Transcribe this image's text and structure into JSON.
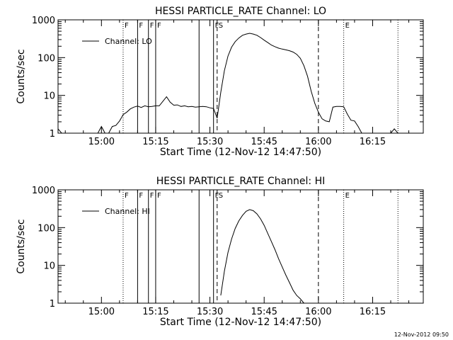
{
  "footer": "12-Nov-2012 09:50",
  "chart_data": [
    {
      "type": "line",
      "title": "HESSI PARTICLE_RATE Channel: LO",
      "xlabel": "Start Time (12-Nov-12 14:47:50)",
      "ylabel": "Counts/sec",
      "yscale": "log",
      "ylim": [
        1,
        1000
      ],
      "xlim": [
        "14:48",
        "16:29"
      ],
      "x_ticks": [
        "15:00",
        "15:15",
        "15:30",
        "15:45",
        "16:00",
        "16:15"
      ],
      "y_ticks": [
        "1",
        "10",
        "100",
        "1000"
      ],
      "grid": false,
      "legend": {
        "label": "Channel: LO",
        "position": "top-left"
      },
      "event_flags": [
        {
          "time": "15:06",
          "label": "F",
          "style": "dotted"
        },
        {
          "time": "15:10",
          "label": "F",
          "style": "solid"
        },
        {
          "time": "15:13",
          "label": "F",
          "style": "solid"
        },
        {
          "time": "15:15",
          "label": "F",
          "style": "solid"
        },
        {
          "time": "15:27",
          "label": "",
          "style": "solid"
        },
        {
          "time": "15:31",
          "label": "F",
          "style": "solid"
        },
        {
          "time": "15:32",
          "label": "S",
          "style": "dashed"
        },
        {
          "time": "16:00",
          "label": "",
          "style": "dashed"
        },
        {
          "time": "16:07",
          "label": "E",
          "style": "dotted"
        },
        {
          "time": "16:22",
          "label": "",
          "style": "dotted"
        }
      ],
      "series": [
        {
          "x": [
            "14:48",
            "14:49",
            "14:50",
            "14:51",
            "14:52",
            "14:53",
            "14:54",
            "14:55",
            "14:56",
            "14:57",
            "14:58",
            "14:59",
            "15:00",
            "15:01",
            "15:02",
            "15:03",
            "15:04",
            "15:05",
            "15:06",
            "15:07",
            "15:08",
            "15:09",
            "15:10",
            "15:11",
            "15:12",
            "15:13",
            "15:14",
            "15:15",
            "15:16",
            "15:17",
            "15:18",
            "15:19",
            "15:20",
            "15:21",
            "15:22",
            "15:23",
            "15:24",
            "15:25",
            "15:26",
            "15:27",
            "15:28",
            "15:29",
            "15:30",
            "15:31",
            "15:32",
            "15:33",
            "15:34",
            "15:35",
            "15:36",
            "15:37",
            "15:38",
            "15:39",
            "15:40",
            "15:41",
            "15:42",
            "15:43",
            "15:44",
            "15:45",
            "15:46",
            "15:47",
            "15:48",
            "15:49",
            "15:50",
            "15:51",
            "15:52",
            "15:53",
            "15:54",
            "15:55",
            "15:56",
            "15:57",
            "15:58",
            "15:59",
            "16:00",
            "16:01",
            "16:02",
            "16:03",
            "16:04",
            "16:05",
            "16:06",
            "16:07",
            "16:08",
            "16:09",
            "16:10",
            "16:11",
            "16:12",
            "16:13",
            "16:14",
            "16:15",
            "16:16",
            "16:17",
            "16:18",
            "16:19",
            "16:20",
            "16:21",
            "16:22",
            "16:23",
            "16:24",
            "16:25",
            "16:26",
            "16:27",
            "16:28",
            "16:29"
          ],
          "y": [
            1.3,
            1,
            1,
            1,
            1,
            1,
            1,
            1,
            1,
            1,
            1,
            1,
            1.5,
            1,
            1,
            1.5,
            1.6,
            2.1,
            3.1,
            3.6,
            4.4,
            4.9,
            5.2,
            4.8,
            5.3,
            5.0,
            5.1,
            5.3,
            5.3,
            7.0,
            9.2,
            6.6,
            5.5,
            5.6,
            5.1,
            5.3,
            5.0,
            5.1,
            4.9,
            5.0,
            5.1,
            5.0,
            4.7,
            4.5,
            2.5,
            12,
            45,
            110,
            190,
            265,
            330,
            390,
            420,
            440,
            420,
            390,
            340,
            290,
            250,
            215,
            195,
            178,
            168,
            160,
            152,
            140,
            122,
            96,
            61,
            32,
            13,
            6.2,
            3.6,
            2.4,
            2.1,
            2.0,
            4.9,
            5.1,
            5.1,
            5.0,
            3.2,
            2.2,
            2.1,
            1.5,
            1,
            1,
            1,
            1,
            1,
            1,
            1,
            1,
            1,
            1.3,
            1,
            1,
            1,
            1,
            1,
            1,
            1,
            1
          ]
        }
      ]
    },
    {
      "type": "line",
      "title": "HESSI PARTICLE_RATE Channel: HI",
      "xlabel": "Start Time (12-Nov-12 14:47:50)",
      "ylabel": "Counts/sec",
      "yscale": "log",
      "ylim": [
        1,
        1000
      ],
      "xlim": [
        "14:48",
        "16:29"
      ],
      "x_ticks": [
        "15:00",
        "15:15",
        "15:30",
        "15:45",
        "16:00",
        "16:15"
      ],
      "y_ticks": [
        "1",
        "10",
        "100",
        "1000"
      ],
      "grid": false,
      "legend": {
        "label": "Channel: HI",
        "position": "top-left"
      },
      "event_flags": [
        {
          "time": "15:06",
          "label": "F",
          "style": "dotted"
        },
        {
          "time": "15:10",
          "label": "F",
          "style": "solid"
        },
        {
          "time": "15:13",
          "label": "F",
          "style": "solid"
        },
        {
          "time": "15:15",
          "label": "F",
          "style": "solid"
        },
        {
          "time": "15:27",
          "label": "",
          "style": "solid"
        },
        {
          "time": "15:31",
          "label": "F",
          "style": "solid"
        },
        {
          "time": "15:32",
          "label": "S",
          "style": "dashed"
        },
        {
          "time": "16:00",
          "label": "",
          "style": "dashed"
        },
        {
          "time": "16:07",
          "label": "E",
          "style": "dotted"
        },
        {
          "time": "16:22",
          "label": "",
          "style": "dotted"
        }
      ],
      "series": [
        {
          "x": [
            "15:33",
            "15:34",
            "15:35",
            "15:36",
            "15:37",
            "15:38",
            "15:39",
            "15:40",
            "15:41",
            "15:42",
            "15:43",
            "15:44",
            "15:45",
            "15:46",
            "15:47",
            "15:48",
            "15:49",
            "15:50",
            "15:51",
            "15:52",
            "15:53",
            "15:54",
            "15:55",
            "15:56"
          ],
          "y": [
            1.6,
            7,
            22,
            50,
            95,
            150,
            210,
            270,
            300,
            280,
            230,
            170,
            115,
            70,
            43,
            26,
            15,
            9,
            5.5,
            3.5,
            2.2,
            1.6,
            1.3,
            1
          ]
        }
      ]
    }
  ]
}
